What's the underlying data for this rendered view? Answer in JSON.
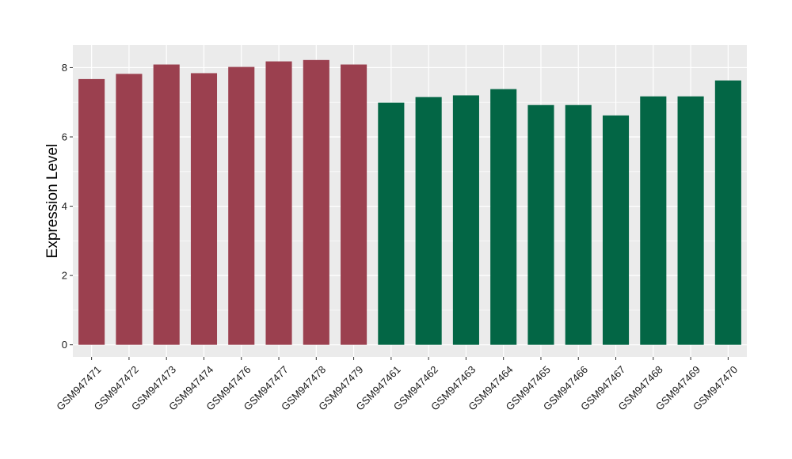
{
  "chart_data": {
    "type": "bar",
    "title": "",
    "xlabel": "",
    "ylabel": "Expression Level",
    "ylim": [
      -0.35,
      8.65
    ],
    "yticks": [
      0,
      2,
      4,
      6,
      8
    ],
    "grid": true,
    "legend": "none",
    "panel_background": "#ebebeb",
    "categories": [
      "GSM947471",
      "GSM947472",
      "GSM947473",
      "GSM947474",
      "GSM947476",
      "GSM947477",
      "GSM947478",
      "GSM947479",
      "GSM947461",
      "GSM947462",
      "GSM947463",
      "GSM947464",
      "GSM947465",
      "GSM947466",
      "GSM947467",
      "GSM947468",
      "GSM947469",
      "GSM947470"
    ],
    "values": [
      7.67,
      7.82,
      8.09,
      7.84,
      8.02,
      8.18,
      8.22,
      8.09,
      6.99,
      7.15,
      7.2,
      7.38,
      6.92,
      6.92,
      6.62,
      7.17,
      7.17,
      7.63
    ],
    "colors": [
      "#9b404f",
      "#9b404f",
      "#9b404f",
      "#9b404f",
      "#9b404f",
      "#9b404f",
      "#9b404f",
      "#9b404f",
      "#036645",
      "#036645",
      "#036645",
      "#036645",
      "#036645",
      "#036645",
      "#036645",
      "#036645",
      "#036645",
      "#036645"
    ]
  }
}
